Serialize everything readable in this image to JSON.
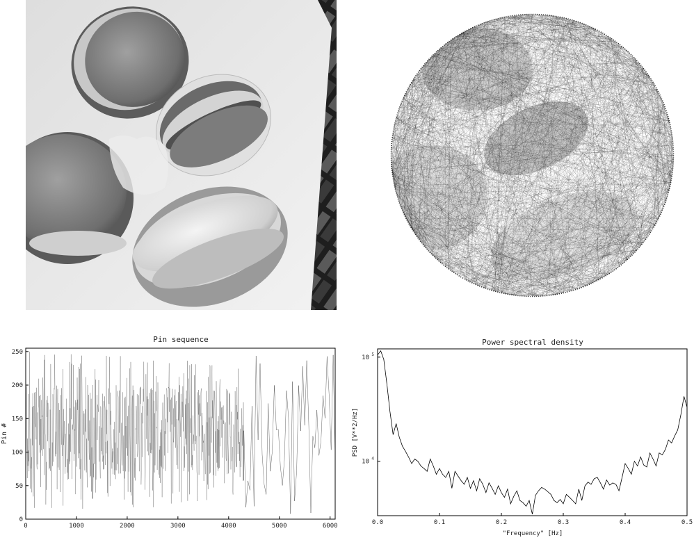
{
  "colors": {
    "background": "#ffffff",
    "ink": "#111111",
    "photo_dark": "#2a2a2a",
    "photo_mid": "#8a8a8a",
    "photo_light": "#e6e6e6"
  },
  "chart_data": [
    {
      "type": "image",
      "description_name": "grayscale-macaron-photo",
      "title": ""
    },
    {
      "type": "image",
      "description_name": "string-art-rendering",
      "title": ""
    },
    {
      "type": "line",
      "title": "Pin sequence",
      "xlabel": "",
      "ylabel": "Pin #",
      "xlim": [
        0,
        6100
      ],
      "ylim": [
        0,
        255
      ],
      "xticks": [
        0,
        1000,
        2000,
        3000,
        4000,
        5000,
        6000
      ],
      "yticks": [
        0,
        50,
        100,
        150,
        200,
        250
      ],
      "dense_region_end": 4300,
      "sparse_region_end": 6100,
      "grid": false
    },
    {
      "type": "line",
      "title": "Power spectral density",
      "xlabel": "\"Frequency\" [Hz]",
      "ylabel": "PSD [V**2/Hz]",
      "xlim": [
        0.0,
        0.5
      ],
      "ylim": [
        3000,
        120000
      ],
      "yscale": "log",
      "xticks": [
        0.0,
        0.1,
        0.2,
        0.3,
        0.4,
        0.5
      ],
      "xtick_labels": [
        "0.0",
        "0.1",
        "0.2",
        "0.3",
        "0.4",
        "0.5"
      ],
      "yticks": [
        10000,
        100000
      ],
      "ytick_bases": [
        "10",
        "10"
      ],
      "ytick_exps": [
        "4",
        "5"
      ],
      "grid": false,
      "x": [
        0.0,
        0.005,
        0.01,
        0.015,
        0.02,
        0.025,
        0.03,
        0.035,
        0.04,
        0.045,
        0.05,
        0.055,
        0.06,
        0.065,
        0.07,
        0.075,
        0.08,
        0.085,
        0.09,
        0.095,
        0.1,
        0.105,
        0.11,
        0.115,
        0.12,
        0.125,
        0.13,
        0.135,
        0.14,
        0.145,
        0.15,
        0.155,
        0.16,
        0.165,
        0.17,
        0.175,
        0.18,
        0.185,
        0.19,
        0.195,
        0.2,
        0.205,
        0.21,
        0.215,
        0.22,
        0.225,
        0.23,
        0.235,
        0.24,
        0.245,
        0.25,
        0.255,
        0.26,
        0.265,
        0.27,
        0.275,
        0.28,
        0.285,
        0.29,
        0.295,
        0.3,
        0.305,
        0.31,
        0.315,
        0.32,
        0.325,
        0.33,
        0.335,
        0.34,
        0.345,
        0.35,
        0.355,
        0.36,
        0.365,
        0.37,
        0.375,
        0.38,
        0.385,
        0.39,
        0.395,
        0.4,
        0.405,
        0.41,
        0.415,
        0.42,
        0.425,
        0.43,
        0.435,
        0.44,
        0.445,
        0.45,
        0.455,
        0.46,
        0.465,
        0.47,
        0.475,
        0.48,
        0.485,
        0.49,
        0.495,
        0.5
      ],
      "y": [
        105000,
        115000,
        95000,
        55000,
        30000,
        18000,
        23000,
        17000,
        14000,
        12500,
        11000,
        9500,
        10500,
        10000,
        9000,
        8500,
        8000,
        10500,
        9000,
        7500,
        8500,
        7500,
        7000,
        8000,
        5500,
        8000,
        7200,
        6500,
        6000,
        7000,
        5500,
        6500,
        5200,
        6800,
        6000,
        5000,
        6200,
        5500,
        4800,
        5800,
        5000,
        4500,
        5400,
        3900,
        4600,
        5200,
        4200,
        4000,
        3700,
        4200,
        3100,
        4700,
        5200,
        5600,
        5400,
        5100,
        4800,
        4200,
        4000,
        4300,
        3900,
        4800,
        4500,
        4200,
        3900,
        5400,
        4200,
        5800,
        6300,
        6000,
        6800,
        7000,
        6200,
        5400,
        6600,
        5900,
        6200,
        6000,
        5200,
        7000,
        9500,
        8500,
        7500,
        10000,
        9000,
        11000,
        9200,
        8800,
        12000,
        10500,
        9000,
        12000,
        11500,
        13000,
        16000,
        15000,
        17500,
        20000,
        28000,
        42000,
        33000
      ]
    }
  ]
}
